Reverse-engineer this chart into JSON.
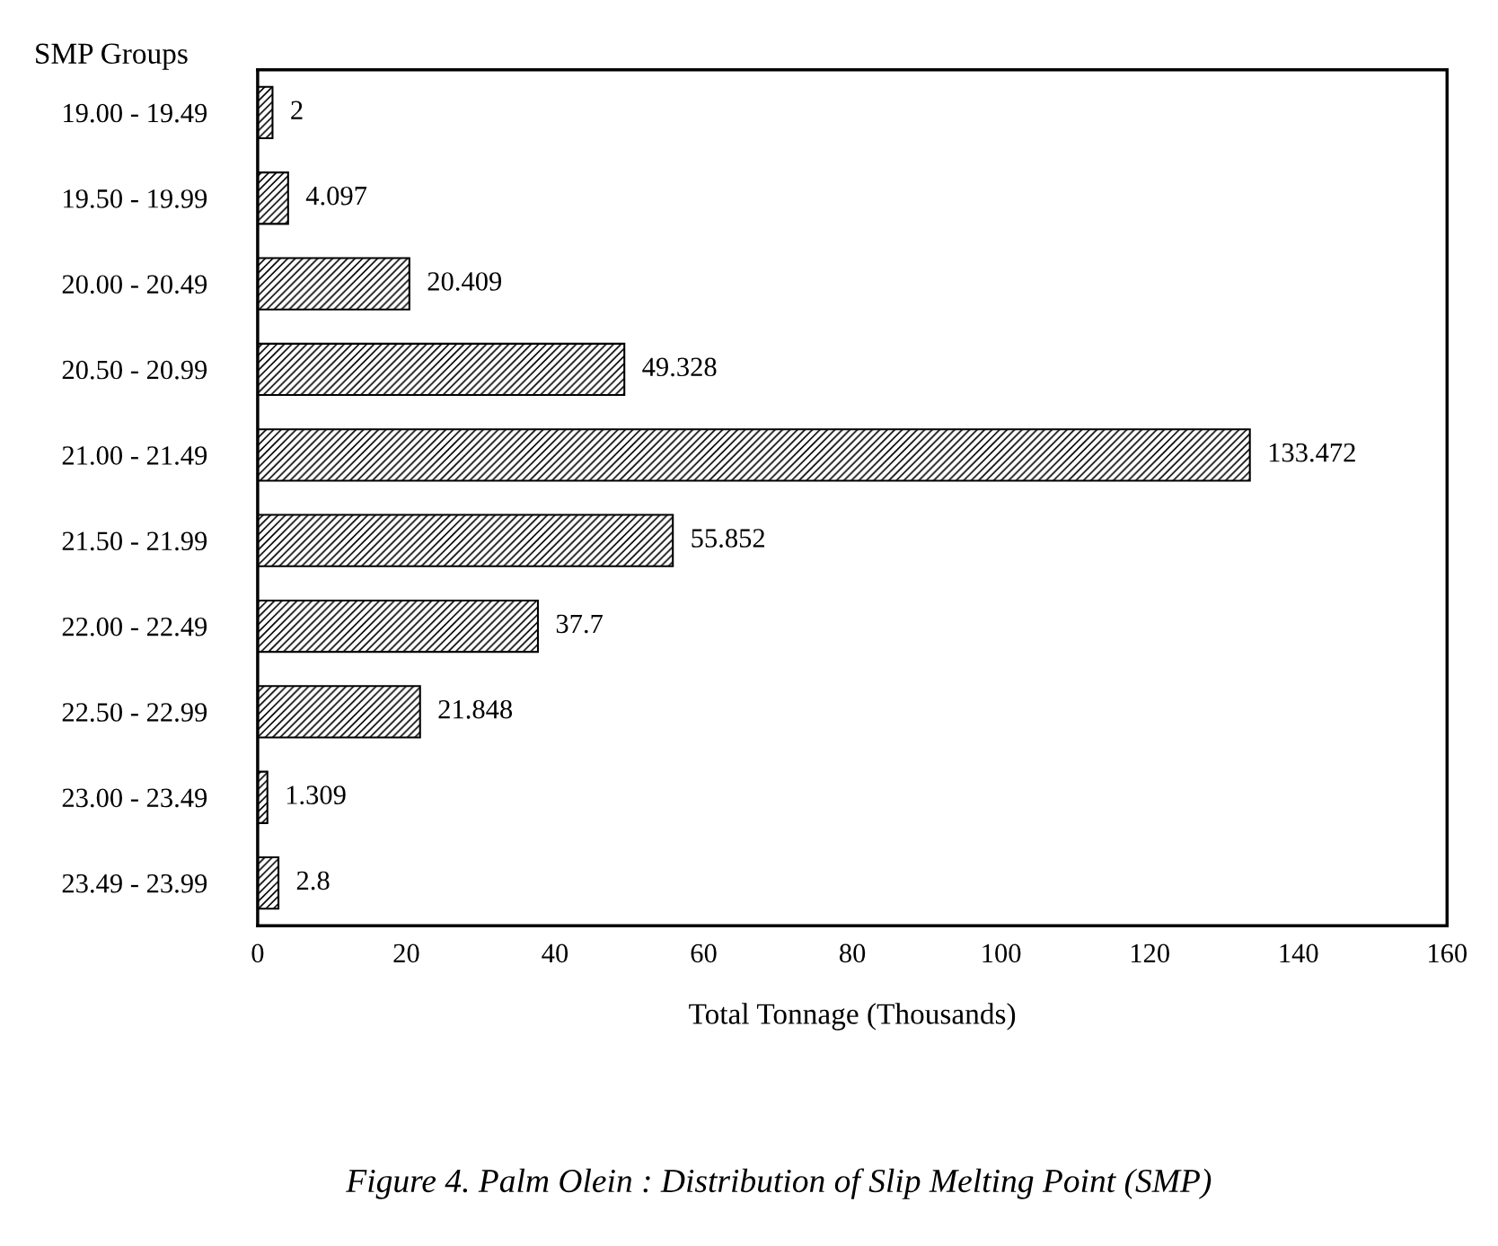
{
  "chart_data": {
    "type": "bar",
    "orientation": "horizontal",
    "ylabel": "SMP Groups",
    "xlabel": "Total Tonnage (Thousands)",
    "categories": [
      "19.00 - 19.49",
      "19.50 - 19.99",
      "20.00 - 20.49",
      "20.50 - 20.99",
      "21.00 - 21.49",
      "21.50 - 21.99",
      "22.00 - 22.49",
      "22.50 - 22.99",
      "23.00 - 23.49",
      "23.49 - 23.99"
    ],
    "values": [
      2,
      4.097,
      20.409,
      49.328,
      133.472,
      55.852,
      37.7,
      21.848,
      1.309,
      2.8
    ],
    "color": "#000000",
    "xlim": [
      0,
      160
    ],
    "xticks": [
      0,
      20,
      40,
      60,
      80,
      100,
      120,
      140,
      160
    ],
    "data_labels": true,
    "grid": false,
    "legend": false,
    "annotations": [
      "Figure 4. Palm Olein : Distribution of Slip Melting Point (SMP)"
    ]
  }
}
